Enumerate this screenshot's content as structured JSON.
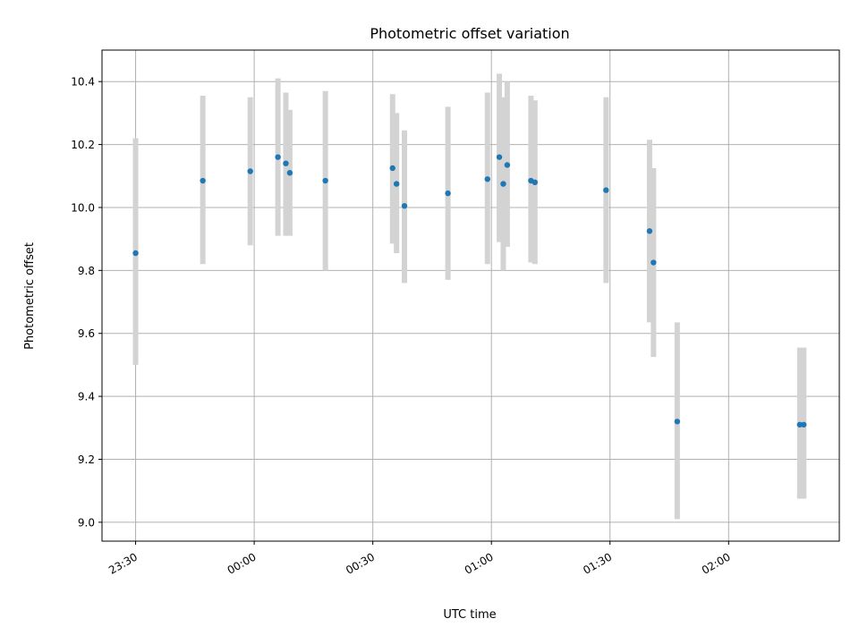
{
  "chart_data": {
    "type": "scatter",
    "title": "Photometric offset variation",
    "xlabel": "UTC time",
    "ylabel": "Photometric offset",
    "x_tick_labels": [
      "23:30",
      "00:00",
      "00:30",
      "01:00",
      "01:30",
      "02:00"
    ],
    "x_ticks_minutes": [
      -30,
      0,
      30,
      60,
      90,
      120
    ],
    "xlim_minutes": [
      -38.5,
      148
    ],
    "y_ticks": [
      9.0,
      9.2,
      9.4,
      9.6,
      9.8,
      10.0,
      10.2,
      10.4
    ],
    "y_tick_labels": [
      "9.0",
      "9.2",
      "9.4",
      "9.6",
      "9.8",
      "10.0",
      "10.2",
      "10.4"
    ],
    "ylim": [
      8.94,
      10.5
    ],
    "grid": true,
    "colors": {
      "point": "#1f77b4",
      "errorbar": "#d3d3d3",
      "grid": "#b0b0b0"
    },
    "series": [
      {
        "points": [
          {
            "time": "23:30",
            "y": 9.855,
            "ylow": 9.5,
            "yhigh": 10.22
          },
          {
            "time": "23:47",
            "y": 10.085,
            "ylow": 9.82,
            "yhigh": 10.355
          },
          {
            "time": "23:59",
            "y": 10.115,
            "ylow": 9.88,
            "yhigh": 10.35
          },
          {
            "time": "00:06",
            "y": 10.16,
            "ylow": 9.91,
            "yhigh": 10.41
          },
          {
            "time": "00:08",
            "y": 10.14,
            "ylow": 9.91,
            "yhigh": 10.365
          },
          {
            "time": "00:09",
            "y": 10.11,
            "ylow": 9.91,
            "yhigh": 10.31
          },
          {
            "time": "00:18",
            "y": 10.085,
            "ylow": 9.8,
            "yhigh": 10.37
          },
          {
            "time": "00:35",
            "y": 10.125,
            "ylow": 9.885,
            "yhigh": 10.36
          },
          {
            "time": "00:36",
            "y": 10.075,
            "ylow": 9.855,
            "yhigh": 10.3
          },
          {
            "time": "00:38",
            "y": 10.005,
            "ylow": 9.76,
            "yhigh": 10.245
          },
          {
            "time": "00:49",
            "y": 10.045,
            "ylow": 9.77,
            "yhigh": 10.32
          },
          {
            "time": "00:59",
            "y": 10.09,
            "ylow": 9.82,
            "yhigh": 10.365
          },
          {
            "time": "01:02",
            "y": 10.16,
            "ylow": 9.89,
            "yhigh": 10.425
          },
          {
            "time": "01:03",
            "y": 10.075,
            "ylow": 9.8,
            "yhigh": 10.35
          },
          {
            "time": "01:04",
            "y": 10.135,
            "ylow": 9.875,
            "yhigh": 10.4
          },
          {
            "time": "01:10",
            "y": 10.085,
            "ylow": 9.825,
            "yhigh": 10.355
          },
          {
            "time": "01:11",
            "y": 10.08,
            "ylow": 9.82,
            "yhigh": 10.34
          },
          {
            "time": "01:29",
            "y": 10.055,
            "ylow": 9.76,
            "yhigh": 10.35
          },
          {
            "time": "01:40",
            "y": 9.925,
            "ylow": 9.635,
            "yhigh": 10.215
          },
          {
            "time": "01:41",
            "y": 9.825,
            "ylow": 9.525,
            "yhigh": 10.125
          },
          {
            "time": "01:47",
            "y": 9.32,
            "ylow": 9.01,
            "yhigh": 9.635
          },
          {
            "time": "02:18",
            "y": 9.31,
            "ylow": 9.075,
            "yhigh": 9.555
          },
          {
            "time": "02:19",
            "y": 9.31,
            "ylow": 9.075,
            "yhigh": 9.555
          }
        ]
      }
    ]
  }
}
